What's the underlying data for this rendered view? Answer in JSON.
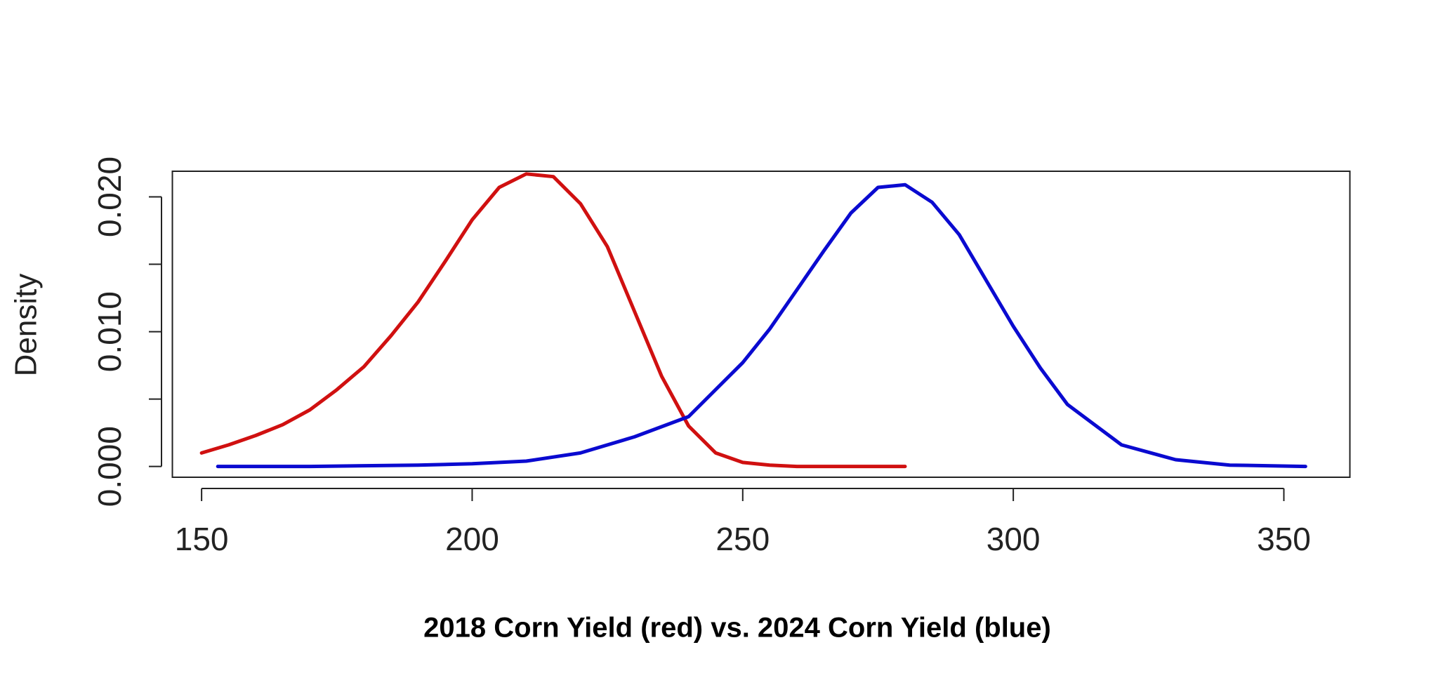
{
  "chart_data": {
    "type": "line",
    "xlabel": "2018 Corn Yield (red) vs. 2024 Corn Yield (blue)",
    "ylabel": "Density",
    "xlim": [
      144.6,
      362.2
    ],
    "ylim": [
      -0.0008,
      0.0219
    ],
    "xticks": [
      150,
      200,
      250,
      300,
      350
    ],
    "yticks": [
      {
        "value": 0,
        "label": "0.000"
      },
      {
        "value": 0.01,
        "label": "0.010"
      },
      {
        "value": 0.02,
        "label": "0.020"
      }
    ],
    "yminor_ticks": [
      0.005,
      0.015
    ],
    "series": [
      {
        "name": "2018 Corn Yield",
        "color": "#d01010",
        "x": [
          150,
          155,
          160,
          165,
          170,
          175,
          180,
          185,
          190,
          195,
          200,
          205,
          210,
          215,
          220,
          225,
          230,
          235,
          240,
          245,
          250,
          255,
          260,
          270,
          280
        ],
        "values": [
          0.001,
          0.0016,
          0.0023,
          0.0031,
          0.0042,
          0.0057,
          0.0074,
          0.0097,
          0.0122,
          0.0152,
          0.0183,
          0.0207,
          0.0217,
          0.0215,
          0.0195,
          0.0163,
          0.0115,
          0.0067,
          0.003,
          0.001,
          0.0003,
          0.0001,
          0,
          0,
          0
        ]
      },
      {
        "name": "2024 Corn Yield",
        "color": "#0a0ad0",
        "x": [
          153,
          170,
          190,
          200,
          210,
          220,
          230,
          240,
          250,
          255,
          260,
          265,
          270,
          275,
          280,
          285,
          290,
          295,
          300,
          305,
          310,
          320,
          330,
          340,
          354
        ],
        "values": [
          0,
          0,
          0.0001,
          0.0002,
          0.0004,
          0.001,
          0.0022,
          0.0037,
          0.0077,
          0.0102,
          0.0131,
          0.016,
          0.0188,
          0.0207,
          0.0209,
          0.0196,
          0.0172,
          0.0138,
          0.0104,
          0.0073,
          0.0046,
          0.0016,
          0.0005,
          0.0001,
          0
        ]
      }
    ]
  }
}
